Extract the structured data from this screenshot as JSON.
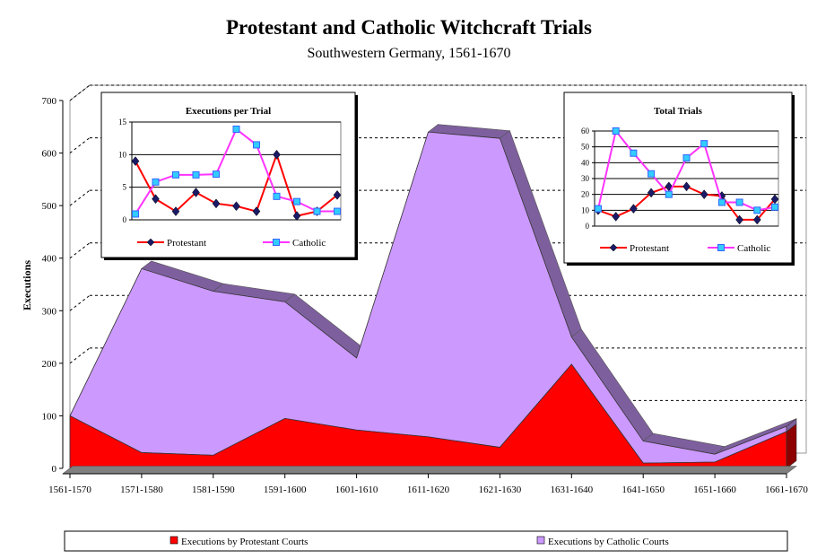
{
  "chart_data": [
    {
      "type": "area",
      "title": "Protestant and Catholic Witchcraft Trials",
      "subtitle": "Southwestern Germany, 1561-1670",
      "ylabel": "Executions",
      "xlabel": "",
      "ylim": [
        0,
        700
      ],
      "yticks": [
        0,
        100,
        200,
        300,
        400,
        500,
        600,
        700
      ],
      "grid": true,
      "stacked": true,
      "legend_position": "bottom",
      "categories": [
        "1561-1570",
        "1571-1580",
        "1581-1590",
        "1591-1600",
        "1601-1610",
        "1611-1620",
        "1621-1630",
        "1631-1640",
        "1641-1650",
        "1651-1660",
        "1661-1670"
      ],
      "series": [
        {
          "name": "Executions by Protestant Courts",
          "color": "#ff0000",
          "values": [
            100,
            30,
            25,
            95,
            73,
            60,
            40,
            198,
            10,
            12,
            70
          ]
        },
        {
          "name": "Executions by Catholic Courts",
          "color": "#cc99ff",
          "values": [
            0,
            350,
            312,
            222,
            137,
            580,
            588,
            52,
            42,
            15,
            10
          ]
        }
      ]
    },
    {
      "type": "line",
      "title": "Executions per Trial",
      "ylim": [
        0,
        15
      ],
      "yticks": [
        0,
        5,
        10,
        15
      ],
      "grid": true,
      "legend_position": "bottom",
      "categories": [
        "1561-1570",
        "1571-1580",
        "1581-1590",
        "1591-1600",
        "1601-1610",
        "1611-1620",
        "1621-1630",
        "1631-1640",
        "1641-1650",
        "1651-1660",
        "1661-1670"
      ],
      "series": [
        {
          "name": "Protestant",
          "color": "#ff0000",
          "marker_color": "#1a1a66",
          "values": [
            9,
            3.2,
            1.3,
            4.2,
            2.5,
            2.1,
            1.3,
            10,
            0.6,
            1.3,
            3.8
          ]
        },
        {
          "name": "Catholic",
          "color": "#ff33ff",
          "marker_color": "#33ccff",
          "values": [
            0.9,
            5.8,
            6.9,
            6.9,
            7,
            13.9,
            11.5,
            3.6,
            2.8,
            1.3,
            1.3
          ]
        }
      ]
    },
    {
      "type": "line",
      "title": "Total Trials",
      "ylim": [
        0,
        60
      ],
      "yticks": [
        0,
        10,
        20,
        30,
        40,
        50,
        60
      ],
      "grid": true,
      "legend_position": "bottom",
      "categories": [
        "1561-1570",
        "1571-1580",
        "1581-1590",
        "1591-1600",
        "1601-1610",
        "1611-1620",
        "1621-1630",
        "1631-1640",
        "1641-1650",
        "1651-1660",
        "1661-1670"
      ],
      "series": [
        {
          "name": "Protestant",
          "color": "#ff0000",
          "marker_color": "#1a1a66",
          "values": [
            10,
            6,
            11,
            21,
            25,
            25,
            20,
            19,
            4,
            4,
            17
          ]
        },
        {
          "name": "Catholic",
          "color": "#ff33ff",
          "marker_color": "#33ccff",
          "values": [
            11,
            60,
            46,
            33,
            20,
            43,
            52,
            15,
            15,
            10,
            12
          ]
        }
      ]
    }
  ]
}
